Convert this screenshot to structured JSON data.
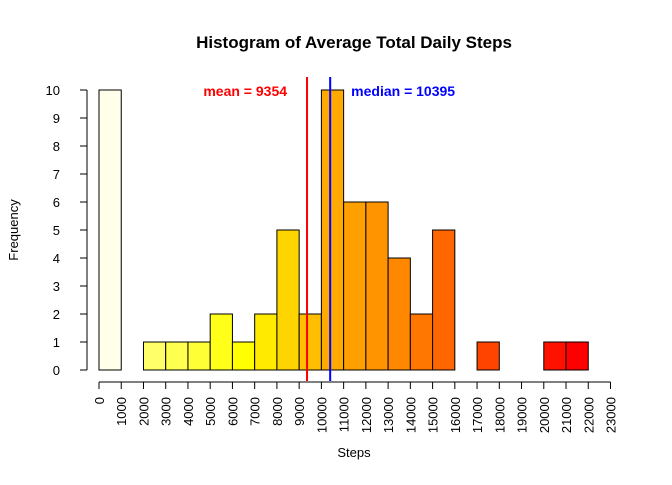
{
  "chart_data": {
    "type": "bar",
    "title": "Histogram of Average Total Daily Steps",
    "xlabel": "Steps",
    "ylabel": "Frequency",
    "bin_width": 1000,
    "xlim": [
      0,
      23000
    ],
    "ylim": [
      0,
      10
    ],
    "x_ticks": [
      "0",
      "1000",
      "2000",
      "3000",
      "4000",
      "5000",
      "6000",
      "7000",
      "8000",
      "9000",
      "10000",
      "11000",
      "12000",
      "13000",
      "14000",
      "15000",
      "16000",
      "17000",
      "18000",
      "19000",
      "20000",
      "21000",
      "22000",
      "23000"
    ],
    "y_ticks": [
      "0",
      "1",
      "2",
      "3",
      "4",
      "5",
      "6",
      "7",
      "8",
      "9",
      "10"
    ],
    "bins": [
      {
        "start": 0,
        "end": 1000,
        "count": 10,
        "color": "#FFFFEA"
      },
      {
        "start": 1000,
        "end": 2000,
        "count": 0,
        "color": "#FFFFD0"
      },
      {
        "start": 2000,
        "end": 3000,
        "count": 1,
        "color": "#FFFF6A"
      },
      {
        "start": 3000,
        "end": 4000,
        "count": 1,
        "color": "#FFFF50"
      },
      {
        "start": 4000,
        "end": 5000,
        "count": 1,
        "color": "#FFFF35"
      },
      {
        "start": 5000,
        "end": 6000,
        "count": 2,
        "color": "#FFFF1A"
      },
      {
        "start": 6000,
        "end": 7000,
        "count": 1,
        "color": "#FFFF00"
      },
      {
        "start": 7000,
        "end": 8000,
        "count": 2,
        "color": "#FFEA00"
      },
      {
        "start": 8000,
        "end": 9000,
        "count": 5,
        "color": "#FFD500"
      },
      {
        "start": 9000,
        "end": 10000,
        "count": 2,
        "color": "#FFBF00"
      },
      {
        "start": 10000,
        "end": 11000,
        "count": 10,
        "color": "#FFAA00"
      },
      {
        "start": 11000,
        "end": 12000,
        "count": 6,
        "color": "#FF9F00"
      },
      {
        "start": 12000,
        "end": 13000,
        "count": 6,
        "color": "#FF9400"
      },
      {
        "start": 13000,
        "end": 14000,
        "count": 4,
        "color": "#FF8800"
      },
      {
        "start": 14000,
        "end": 15000,
        "count": 2,
        "color": "#FF7700"
      },
      {
        "start": 15000,
        "end": 16000,
        "count": 5,
        "color": "#FF6600"
      },
      {
        "start": 16000,
        "end": 17000,
        "count": 0,
        "color": "#FF5500"
      },
      {
        "start": 17000,
        "end": 18000,
        "count": 1,
        "color": "#FF4400"
      },
      {
        "start": 18000,
        "end": 19000,
        "count": 0,
        "color": "#FF3300"
      },
      {
        "start": 19000,
        "end": 20000,
        "count": 0,
        "color": "#FF2200"
      },
      {
        "start": 20000,
        "end": 21000,
        "count": 1,
        "color": "#FF1100"
      },
      {
        "start": 21000,
        "end": 22000,
        "count": 1,
        "color": "#FF0000"
      }
    ],
    "reference_lines": [
      {
        "name": "mean",
        "value": 9354,
        "label": "mean = 9354",
        "color": "#FF0000"
      },
      {
        "name": "median",
        "value": 10395,
        "label": "median = 10395",
        "color": "#0000FF"
      }
    ],
    "grid": false,
    "legend": "none"
  }
}
